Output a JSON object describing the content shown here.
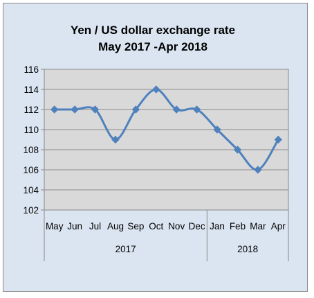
{
  "chart_data": {
    "type": "line",
    "title": "Yen / US dollar exchange rate",
    "subtitle": "May 2017 -Apr 2018",
    "categories": [
      "May",
      "Jun",
      "Jul",
      "Aug",
      "Sep",
      "Oct",
      "Nov",
      "Dec",
      "Jan",
      "Feb",
      "Mar",
      "Apr"
    ],
    "groups": [
      {
        "label": "2017",
        "count": 8
      },
      {
        "label": "2018",
        "count": 4
      }
    ],
    "series": [
      {
        "values": [
          112,
          112,
          112,
          109,
          112,
          114,
          112,
          112,
          110,
          108,
          106,
          109
        ]
      }
    ],
    "yticks": [
      102,
      104,
      106,
      108,
      110,
      112,
      114,
      116
    ],
    "ylim": [
      102,
      116
    ],
    "grid": true,
    "colors": {
      "line": "#4f81bd",
      "plot_background": "#d9d9d9",
      "frame_background": "#dbe5f1"
    }
  }
}
